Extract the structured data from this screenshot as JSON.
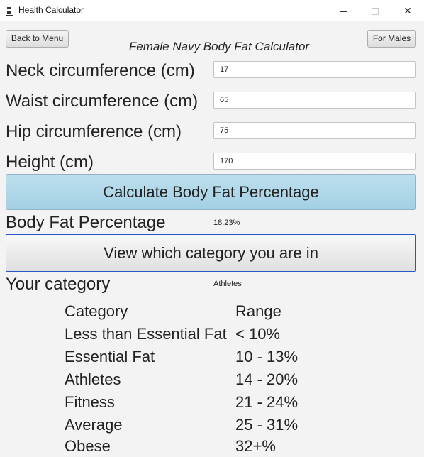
{
  "window": {
    "title": "Health Calculator"
  },
  "header": {
    "back_label": "Back to Menu",
    "males_label": "For Males",
    "title": "Female Navy Body Fat Calculator"
  },
  "form": {
    "neck": {
      "label": "Neck circumference (cm)",
      "value": "17"
    },
    "waist": {
      "label": "Waist circumference (cm)",
      "value": "65"
    },
    "hip": {
      "label": "Hip circumference (cm)",
      "value": "75"
    },
    "height": {
      "label": "Height (cm)",
      "value": "170"
    }
  },
  "actions": {
    "calculate_label": "Calculate Body Fat Percentage",
    "view_category_label": "View which category you are in"
  },
  "results": {
    "body_fat_label": "Body Fat Percentage",
    "body_fat_value": "18.23%",
    "category_label": "Your category",
    "category_value": "Athletes"
  },
  "table": {
    "headers": [
      "Category",
      "Range"
    ],
    "rows": [
      [
        "Less than Essential Fat",
        "< 10%"
      ],
      [
        "Essential Fat",
        "10 - 13%"
      ],
      [
        "Athletes",
        "14 - 20%"
      ],
      [
        "Fitness",
        "21 - 24%"
      ],
      [
        "Average",
        "25 - 31%"
      ],
      [
        "Obese",
        "32+%"
      ]
    ]
  }
}
